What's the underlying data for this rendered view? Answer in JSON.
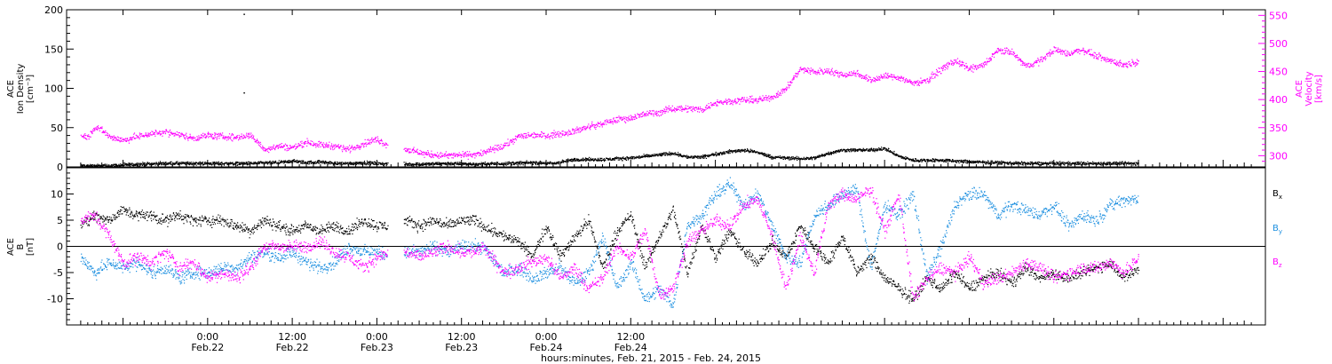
{
  "chart_data": [
    {
      "type": "scatter",
      "panel": "top",
      "left_axis": {
        "label_lines": [
          "ACE",
          "Ion Density",
          "[cm⁻³]"
        ],
        "ylim": [
          0,
          200
        ],
        "ticks": [
          0,
          50,
          100,
          150,
          200
        ]
      },
      "right_axis": {
        "label_lines": [
          "ACE",
          "Velocity",
          "[km/s]"
        ],
        "ylim": [
          280,
          560
        ],
        "ticks": [
          300,
          350,
          400,
          450,
          500,
          550
        ],
        "color": "#ff00ff"
      },
      "series": [
        {
          "key": "density",
          "axis": "left",
          "color": "#000000",
          "noise": 1.8,
          "density": 4,
          "x": [
            -18,
            -14,
            -10,
            -6,
            -2,
            2,
            6,
            10,
            12,
            14,
            16,
            18,
            20,
            22,
            26,
            30,
            34,
            38,
            42,
            46,
            49,
            52,
            56,
            60,
            64,
            66,
            68,
            70,
            72,
            74,
            76,
            78,
            80,
            82,
            84,
            86,
            88,
            89,
            90,
            92,
            94,
            96,
            98,
            100,
            104,
            108,
            112,
            116,
            120,
            124,
            132
          ],
          "y": [
            2,
            2,
            4,
            5,
            5,
            5,
            5,
            6,
            8,
            6,
            7,
            5,
            5,
            6,
            4,
            4,
            5,
            4,
            5,
            6,
            5,
            10,
            10,
            12,
            16,
            18,
            13,
            13,
            17,
            20,
            22,
            19,
            13,
            12,
            11,
            12,
            18,
            20,
            22,
            22,
            22,
            24,
            14,
            9,
            9,
            7,
            6,
            5,
            5,
            5,
            5
          ]
        },
        {
          "key": "velocity",
          "axis": "right",
          "color": "#ff00ff",
          "noise": 5,
          "density": 3,
          "x": [
            -18,
            -17,
            -16,
            -15,
            -14,
            -12,
            -10,
            -8,
            -6,
            -4,
            -2,
            0,
            2,
            4,
            6,
            8,
            10,
            12,
            14,
            16,
            18,
            20,
            22,
            24,
            26,
            28,
            30,
            32,
            34,
            36,
            38,
            39,
            42,
            44,
            46,
            48,
            50,
            52,
            54,
            56,
            58,
            60,
            62,
            64,
            66,
            68,
            70,
            72,
            74,
            76,
            78,
            80,
            82,
            84,
            86,
            88,
            90,
            92,
            94,
            96,
            98,
            100,
            102,
            104,
            106,
            108,
            110,
            112,
            114,
            116,
            118,
            120,
            122,
            124,
            126,
            128,
            130,
            132
          ],
          "y": [
            338,
            334,
            352,
            346,
            335,
            328,
            335,
            340,
            343,
            338,
            332,
            337,
            335,
            333,
            338,
            312,
            318,
            315,
            325,
            320,
            318,
            312,
            322,
            330,
            316,
            312,
            306,
            302,
            301,
            302,
            303,
            306,
            318,
            335,
            338,
            337,
            340,
            345,
            352,
            358,
            365,
            368,
            375,
            378,
            385,
            385,
            383,
            395,
            398,
            400,
            400,
            405,
            420,
            455,
            450,
            452,
            445,
            448,
            435,
            443,
            440,
            430,
            435,
            455,
            470,
            455,
            462,
            488,
            485,
            460,
            470,
            490,
            482,
            490,
            478,
            470,
            462,
            470
          ]
        }
      ]
    },
    {
      "type": "scatter",
      "panel": "bottom",
      "left_axis": {
        "label_lines": [
          "ACE",
          "B",
          "[nT]"
        ],
        "ylim": [
          -15,
          15
        ],
        "ticks": [
          -10,
          -5,
          0,
          5,
          10
        ]
      },
      "series": [
        {
          "key": "bx",
          "name": "B",
          "sub": "x",
          "color": "#000000",
          "noise": 0.9,
          "density": 3,
          "x": [
            -18,
            -16,
            -14,
            -12,
            -10,
            -8,
            -6,
            -4,
            -2,
            0,
            2,
            4,
            6,
            8,
            10,
            12,
            14,
            16,
            18,
            20,
            22,
            24,
            26,
            28,
            30,
            32,
            34,
            36,
            38,
            39,
            42,
            44,
            46,
            48,
            50,
            52,
            54,
            56,
            58,
            60,
            62,
            64,
            66,
            68,
            70,
            72,
            74,
            76,
            78,
            80,
            82,
            84,
            86,
            88,
            90,
            92,
            94,
            96,
            98,
            100,
            102,
            104,
            106,
            108,
            110,
            112,
            114,
            116,
            118,
            120,
            122,
            124,
            126,
            128,
            130,
            132
          ],
          "y": [
            4,
            6,
            5,
            7,
            6,
            6,
            5,
            6,
            5,
            5,
            5,
            4,
            3,
            5,
            4,
            3,
            4,
            3,
            4,
            3,
            5,
            4,
            4,
            5,
            4,
            5,
            4,
            5,
            5,
            4,
            2,
            1,
            -2,
            4,
            -2,
            2,
            5,
            -4,
            3,
            6,
            -4,
            2,
            7,
            -5,
            4,
            -2,
            3,
            -1,
            -3,
            1,
            -2,
            4,
            0,
            -3,
            2,
            -5,
            -2,
            -6,
            -8,
            -10,
            -6,
            -8,
            -5,
            -8,
            -6,
            -5,
            -7,
            -4,
            -6,
            -5,
            -6,
            -5,
            -4,
            -3,
            -6,
            -4
          ]
        },
        {
          "key": "by",
          "name": "B",
          "sub": "y",
          "color": "#1e90e0",
          "noise": 1.0,
          "density": 3,
          "x": [
            -18,
            -16,
            -14,
            -12,
            -10,
            -8,
            -6,
            -4,
            -2,
            0,
            2,
            4,
            6,
            8,
            10,
            12,
            14,
            16,
            18,
            20,
            22,
            24,
            26,
            28,
            30,
            32,
            34,
            36,
            38,
            39,
            42,
            44,
            46,
            48,
            50,
            52,
            54,
            56,
            58,
            60,
            62,
            64,
            66,
            68,
            70,
            72,
            74,
            76,
            78,
            80,
            82,
            84,
            86,
            88,
            90,
            92,
            94,
            96,
            98,
            100,
            102,
            104,
            106,
            108,
            110,
            112,
            114,
            116,
            118,
            120,
            122,
            124,
            126,
            128,
            130,
            132
          ],
          "y": [
            -2,
            -5,
            -3,
            -4,
            -3,
            -5,
            -4,
            -6,
            -5,
            -5,
            -4,
            -4,
            -2,
            -1,
            -2,
            -1,
            -3,
            -4,
            -3,
            0,
            -1,
            -1,
            -2,
            -1,
            -1,
            0,
            -1,
            0,
            0,
            0,
            -5,
            -4,
            -6,
            -5,
            -4,
            -7,
            -5,
            2,
            -8,
            -3,
            -10,
            -8,
            -11,
            4,
            6,
            10,
            12,
            8,
            10,
            4,
            -2,
            -3,
            6,
            8,
            10,
            11,
            -4,
            8,
            6,
            10,
            -6,
            0,
            8,
            10,
            10,
            6,
            8,
            7,
            6,
            8,
            4,
            6,
            5,
            8,
            9,
            9
          ]
        },
        {
          "key": "bz",
          "name": "B",
          "sub": "z",
          "color": "#ff00ff",
          "noise": 1.0,
          "density": 3,
          "x": [
            -18,
            -16,
            -14,
            -12,
            -10,
            -8,
            -6,
            -4,
            -2,
            0,
            2,
            4,
            6,
            8,
            10,
            12,
            14,
            16,
            18,
            20,
            22,
            24,
            26,
            28,
            30,
            32,
            34,
            36,
            38,
            39,
            42,
            44,
            46,
            48,
            50,
            52,
            54,
            56,
            58,
            60,
            62,
            64,
            66,
            68,
            70,
            72,
            74,
            76,
            78,
            80,
            82,
            84,
            86,
            88,
            90,
            92,
            94,
            96,
            98,
            100,
            102,
            104,
            106,
            108,
            110,
            112,
            114,
            116,
            118,
            120,
            122,
            124,
            126,
            128,
            130,
            132
          ],
          "y": [
            5,
            6,
            2,
            -3,
            -2,
            -3,
            -1,
            -4,
            -3,
            -6,
            -5,
            -6,
            -4,
            0,
            0,
            0,
            0,
            1,
            -1,
            -2,
            -4,
            -2,
            -1,
            -1,
            -2,
            -1,
            0,
            -1,
            -1,
            0,
            -5,
            -4,
            -3,
            -2,
            -6,
            -4,
            -8,
            -6,
            0,
            -2,
            3,
            -9,
            -8,
            1,
            3,
            5,
            4,
            8,
            9,
            2,
            -8,
            2,
            -5,
            8,
            10,
            9,
            11,
            3,
            10,
            -10,
            -6,
            -4,
            -5,
            -2,
            -7,
            -6,
            -5,
            -3,
            -4,
            -6,
            -5,
            -4,
            -4,
            -3,
            -5,
            -2
          ]
        }
      ]
    }
  ],
  "x_axis": {
    "range_hours": [
      -20,
      150
    ],
    "major_ticks": [
      {
        "h": 0,
        "time": "0:00",
        "date": "Feb.22"
      },
      {
        "h": 12,
        "time": "12:00",
        "date": "Feb.22"
      },
      {
        "h": 24,
        "time": "0:00",
        "date": "Feb.23"
      },
      {
        "h": 36,
        "time": "12:00",
        "date": "Feb.23"
      },
      {
        "h": 48,
        "time": "0:00",
        "date": "Feb.24"
      },
      {
        "h": 60,
        "time": "12:00",
        "date": "Feb.24"
      }
    ],
    "xlabel": "hours:minutes, Feb. 21, 2015 - Feb. 24, 2015"
  },
  "legend": {
    "placement": "right",
    "entries": [
      "Bx",
      "By",
      "Bz"
    ]
  }
}
